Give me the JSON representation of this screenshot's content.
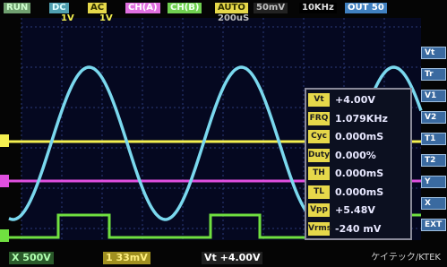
{
  "top_bar": [
    "RUN",
    "DC",
    "AC",
    "CH(A)",
    "CH(B)",
    "AUTO",
    "50mV",
    "10KHz",
    "OUT 50"
  ],
  "channel_scale": [
    "1V",
    "1V",
    "200uS"
  ],
  "side_menu": [
    "Vt",
    "Tr",
    "V1",
    "V2",
    "T1",
    "T2",
    "Y",
    "X",
    "EXT"
  ],
  "measurements": [
    {
      "label": "Vt",
      "value": "+4.00V"
    },
    {
      "label": "FRQ",
      "value": "1.079KHz"
    },
    {
      "label": "Cyc",
      "value": "0.000mS"
    },
    {
      "label": "Duty",
      "value": "0.000%"
    },
    {
      "label": "TH",
      "value": "0.000mS"
    },
    {
      "label": "TL",
      "value": "0.000mS"
    },
    {
      "label": "Vpp",
      "value": "+5.48V"
    },
    {
      "label": "Vrms",
      "value": "-240 mV"
    }
  ],
  "bottom_bar": [
    "X 500V",
    "1 33mV",
    "Vt +4.00V"
  ],
  "watermark": "ケイテック/KTEK"
}
